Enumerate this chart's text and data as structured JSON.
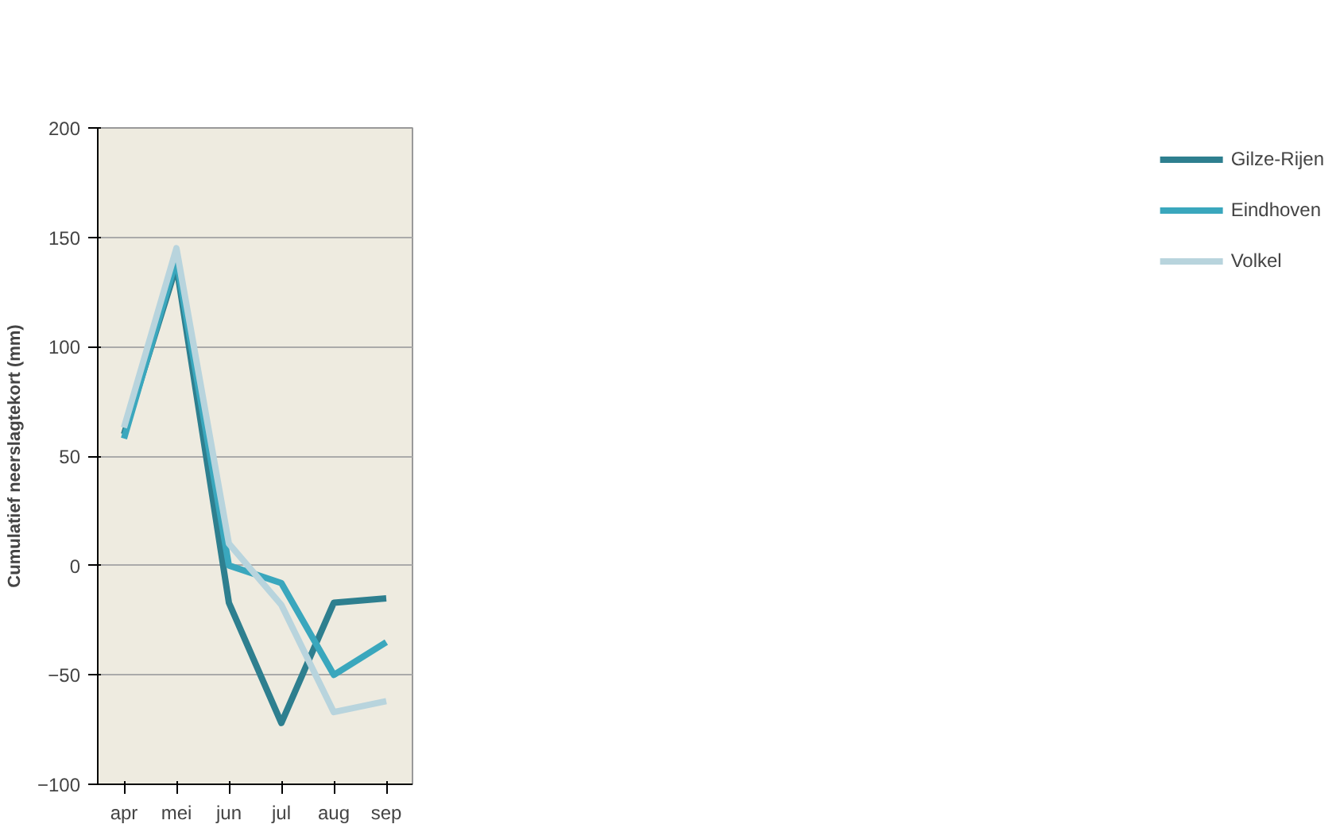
{
  "chart_data": {
    "type": "line",
    "ylabel": "Cumulatief neerslagtekort (mm)",
    "categories": [
      "apr",
      "mei",
      "jun",
      "jul",
      "aug",
      "sep"
    ],
    "series": [
      {
        "name": "Gilze-Rijen",
        "color": "#2e7f8f",
        "values": [
          60,
          137,
          -17,
          -72,
          -17,
          -15
        ]
      },
      {
        "name": "Eindhoven",
        "color": "#3aa7bd",
        "values": [
          58,
          140,
          0,
          -8,
          -50,
          -35
        ]
      },
      {
        "name": "Volkel",
        "color": "#b8d4dd",
        "values": [
          63,
          145,
          10,
          -18,
          -67,
          -62
        ]
      }
    ],
    "ylim": [
      -100,
      200
    ],
    "yticks": [
      -100,
      -50,
      0,
      50,
      100,
      150,
      200
    ],
    "grid": "y",
    "legend": "right",
    "marker": "none",
    "line_style": "solid"
  }
}
